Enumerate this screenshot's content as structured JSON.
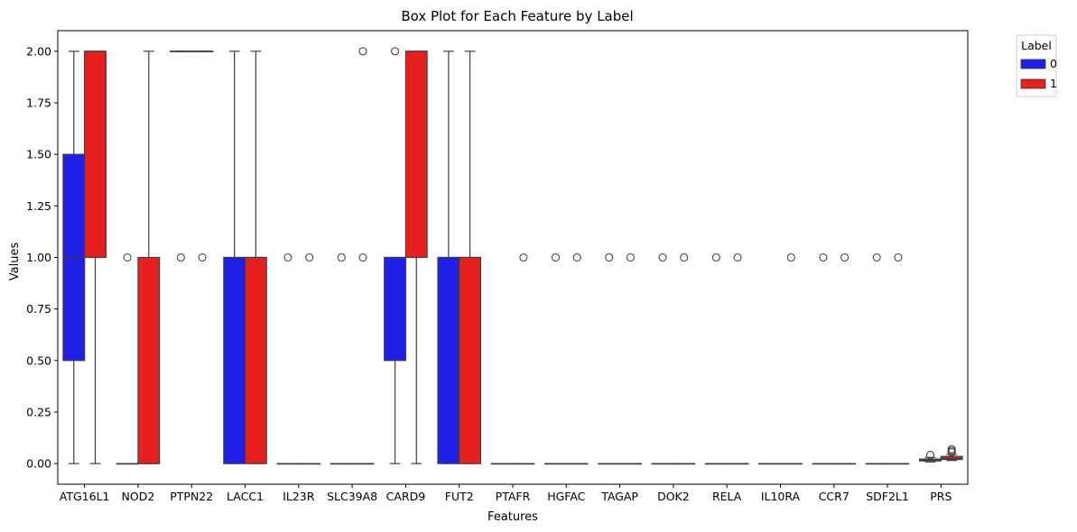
{
  "chart_data": {
    "type": "box",
    "title": "Box Plot for Each Feature by Label",
    "xlabel": "Features",
    "ylabel": "Values",
    "ylim": [
      -0.1,
      2.1
    ],
    "yticks": [
      "0.00",
      "0.25",
      "0.50",
      "0.75",
      "1.00",
      "1.25",
      "1.50",
      "1.75",
      "2.00"
    ],
    "grid": false,
    "legend": {
      "title": "Label",
      "placement": "outside-top-right",
      "entries": [
        "0",
        "1"
      ]
    },
    "series_colors": [
      "#1f1fe6",
      "#e61f1f"
    ],
    "categories": [
      "ATG16L1",
      "NOD2",
      "PTPN22",
      "LACC1",
      "IL23R",
      "SLC39A8",
      "CARD9",
      "FUT2",
      "PTAFR",
      "HGFAC",
      "TAGAP",
      "DOK2",
      "RELA",
      "IL10RA",
      "CCR7",
      "SDF2L1",
      "PRS"
    ],
    "series": [
      {
        "name": "0",
        "boxes": [
          {
            "wlo": 0,
            "q1": 0.5,
            "med": 1,
            "q3": 1.5,
            "whi": 2,
            "out": []
          },
          {
            "wlo": 0,
            "q1": 0,
            "med": 0,
            "q3": 0,
            "whi": 0,
            "out": [
              1
            ]
          },
          {
            "wlo": 2,
            "q1": 2,
            "med": 2,
            "q3": 2,
            "whi": 2,
            "out": [
              1
            ]
          },
          {
            "wlo": 0,
            "q1": 0,
            "med": 1,
            "q3": 1,
            "whi": 2,
            "out": []
          },
          {
            "wlo": 0,
            "q1": 0,
            "med": 0,
            "q3": 0,
            "whi": 0,
            "out": [
              1
            ]
          },
          {
            "wlo": 0,
            "q1": 0,
            "med": 0,
            "q3": 0,
            "whi": 0,
            "out": [
              1
            ]
          },
          {
            "wlo": 0,
            "q1": 0.5,
            "med": 1,
            "q3": 1,
            "whi": 1,
            "out": [
              2
            ]
          },
          {
            "wlo": 0,
            "q1": 0,
            "med": 1,
            "q3": 1,
            "whi": 2,
            "out": []
          },
          {
            "wlo": 0,
            "q1": 0,
            "med": 0,
            "q3": 0,
            "whi": 0,
            "out": []
          },
          {
            "wlo": 0,
            "q1": 0,
            "med": 0,
            "q3": 0,
            "whi": 0,
            "out": [
              1
            ]
          },
          {
            "wlo": 0,
            "q1": 0,
            "med": 0,
            "q3": 0,
            "whi": 0,
            "out": [
              1
            ]
          },
          {
            "wlo": 0,
            "q1": 0,
            "med": 0,
            "q3": 0,
            "whi": 0,
            "out": [
              1
            ]
          },
          {
            "wlo": 0,
            "q1": 0,
            "med": 0,
            "q3": 0,
            "whi": 0,
            "out": [
              1
            ]
          },
          {
            "wlo": 0,
            "q1": 0,
            "med": 0,
            "q3": 0,
            "whi": 0,
            "out": []
          },
          {
            "wlo": 0,
            "q1": 0,
            "med": 0,
            "q3": 0,
            "whi": 0,
            "out": [
              1
            ]
          },
          {
            "wlo": 0,
            "q1": 0,
            "med": 0,
            "q3": 0,
            "whi": 0,
            "out": [
              1
            ]
          },
          {
            "wlo": 0.008,
            "q1": 0.013,
            "med": 0.018,
            "q3": 0.022,
            "whi": 0.03,
            "out": [
              0.042
            ]
          }
        ]
      },
      {
        "name": "1",
        "boxes": [
          {
            "wlo": 0,
            "q1": 1,
            "med": 2,
            "q3": 2,
            "whi": 2,
            "out": []
          },
          {
            "wlo": 0,
            "q1": 0,
            "med": 0,
            "q3": 1,
            "whi": 2,
            "out": []
          },
          {
            "wlo": 2,
            "q1": 2,
            "med": 2,
            "q3": 2,
            "whi": 2,
            "out": [
              1
            ]
          },
          {
            "wlo": 0,
            "q1": 0,
            "med": 1,
            "q3": 1,
            "whi": 2,
            "out": []
          },
          {
            "wlo": 0,
            "q1": 0,
            "med": 0,
            "q3": 0,
            "whi": 0,
            "out": [
              1
            ]
          },
          {
            "wlo": 0,
            "q1": 0,
            "med": 0,
            "q3": 0,
            "whi": 0,
            "out": [
              1,
              2
            ]
          },
          {
            "wlo": 0,
            "q1": 1,
            "med": 2,
            "q3": 2,
            "whi": 2,
            "out": []
          },
          {
            "wlo": 0,
            "q1": 0,
            "med": 1,
            "q3": 1,
            "whi": 2,
            "out": []
          },
          {
            "wlo": 0,
            "q1": 0,
            "med": 0,
            "q3": 0,
            "whi": 0,
            "out": [
              1
            ]
          },
          {
            "wlo": 0,
            "q1": 0,
            "med": 0,
            "q3": 0,
            "whi": 0,
            "out": [
              1
            ]
          },
          {
            "wlo": 0,
            "q1": 0,
            "med": 0,
            "q3": 0,
            "whi": 0,
            "out": [
              1
            ]
          },
          {
            "wlo": 0,
            "q1": 0,
            "med": 0,
            "q3": 0,
            "whi": 0,
            "out": [
              1
            ]
          },
          {
            "wlo": 0,
            "q1": 0,
            "med": 0,
            "q3": 0,
            "whi": 0,
            "out": [
              1
            ]
          },
          {
            "wlo": 0,
            "q1": 0,
            "med": 0,
            "q3": 0,
            "whi": 0,
            "out": [
              1
            ]
          },
          {
            "wlo": 0,
            "q1": 0,
            "med": 0,
            "q3": 0,
            "whi": 0,
            "out": [
              1
            ]
          },
          {
            "wlo": 0,
            "q1": 0,
            "med": 0,
            "q3": 0,
            "whi": 0,
            "out": [
              1
            ]
          },
          {
            "wlo": 0.015,
            "q1": 0.02,
            "med": 0.025,
            "q3": 0.035,
            "whi": 0.045,
            "out": [
              0.055,
              0.062,
              0.07
            ]
          }
        ]
      }
    ]
  }
}
